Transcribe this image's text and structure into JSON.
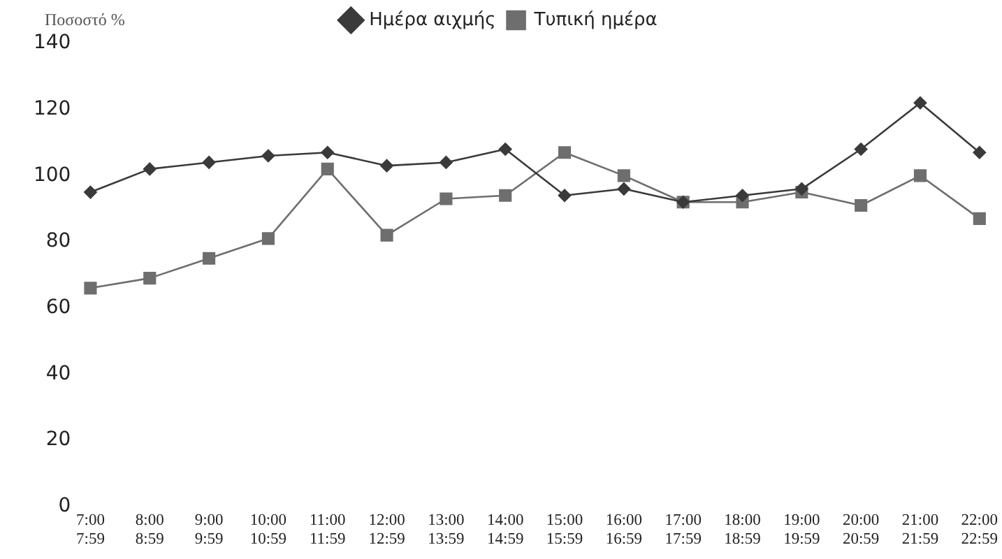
{
  "chart_data": {
    "type": "line",
    "ylabel": "Ποσοστό %",
    "categories": [
      "7:00\n7:59",
      "8:00\n8:59",
      "9:00\n9:59",
      "10:00\n10:59",
      "11:00\n11:59",
      "12:00\n12:59",
      "13:00\n13:59",
      "14:00\n14:59",
      "15:00\n15:59",
      "16:00\n16:59",
      "17:00\n17:59",
      "18:00\n18:59",
      "19:00\n19:59",
      "20:00\n20:59",
      "21:00\n21:59",
      "22:00\n22:59"
    ],
    "series": [
      {
        "name": "Ημέρα αιχμής",
        "color": "#3a3a3a",
        "marker": "diamond",
        "values": [
          95,
          102,
          104,
          106,
          107,
          103,
          104,
          108,
          94,
          96,
          92,
          94,
          96,
          108,
          122,
          107
        ]
      },
      {
        "name": "Τυπική ημέρα",
        "color": "#6e6e6e",
        "marker": "square",
        "values": [
          66,
          69,
          75,
          81,
          102,
          82,
          93,
          94,
          107,
          100,
          92,
          92,
          95,
          91,
          100,
          87
        ]
      }
    ],
    "ylim": [
      0,
      140
    ],
    "yticks": [
      0,
      20,
      40,
      60,
      80,
      100,
      120,
      140
    ],
    "grid": false,
    "legend": "top"
  }
}
